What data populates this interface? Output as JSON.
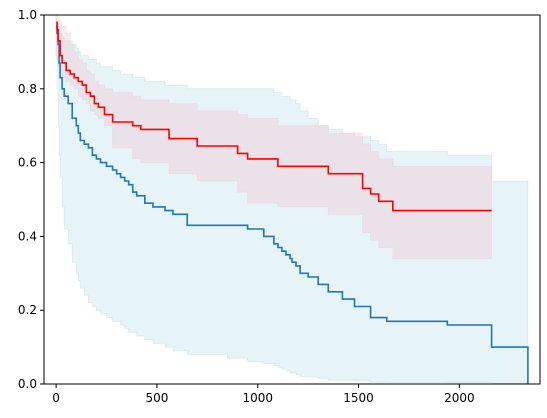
{
  "chart_data": {
    "type": "line",
    "title": "",
    "xlabel": "",
    "ylabel": "",
    "xlim": [
      -60,
      2400
    ],
    "ylim": [
      0,
      1
    ],
    "grid": false,
    "legend": "none",
    "x_ticks": [
      0,
      500,
      1000,
      1500,
      2000
    ],
    "x_tick_labels": [
      "0",
      "500",
      "1000",
      "1500",
      "2000"
    ],
    "y_ticks": [
      0.0,
      0.2,
      0.4,
      0.6,
      0.8,
      1.0
    ],
    "y_tick_labels": [
      "0.0",
      "0.2",
      "0.4",
      "0.6",
      "0.8",
      "1.0"
    ],
    "series": [
      {
        "color": "#1f77b4",
        "band_color": "#add8e6",
        "x": [
          0,
          5,
          10,
          15,
          20,
          30,
          40,
          60,
          80,
          100,
          110,
          120,
          140,
          160,
          180,
          200,
          220,
          250,
          280,
          300,
          320,
          340,
          360,
          380,
          400,
          440,
          480,
          540,
          580,
          650,
          850,
          950,
          1030,
          1080,
          1100,
          1120,
          1140,
          1160,
          1170,
          1190,
          1210,
          1250,
          1300,
          1350,
          1420,
          1480,
          1560,
          1600,
          1640,
          1940,
          2160,
          2340
        ],
        "y": [
          0.97,
          0.95,
          0.92,
          0.87,
          0.83,
          0.8,
          0.78,
          0.76,
          0.72,
          0.7,
          0.68,
          0.66,
          0.65,
          0.64,
          0.62,
          0.61,
          0.6,
          0.59,
          0.58,
          0.57,
          0.56,
          0.55,
          0.54,
          0.52,
          0.51,
          0.49,
          0.48,
          0.47,
          0.46,
          0.43,
          0.43,
          0.42,
          0.4,
          0.38,
          0.37,
          0.36,
          0.35,
          0.34,
          0.33,
          0.32,
          0.3,
          0.29,
          0.27,
          0.25,
          0.23,
          0.21,
          0.18,
          0.18,
          0.17,
          0.16,
          0.1,
          0.0
        ],
        "lower": [
          0.88,
          0.8,
          0.7,
          0.62,
          0.56,
          0.48,
          0.42,
          0.38,
          0.33,
          0.3,
          0.28,
          0.26,
          0.24,
          0.22,
          0.21,
          0.2,
          0.19,
          0.18,
          0.17,
          0.17,
          0.16,
          0.15,
          0.14,
          0.14,
          0.13,
          0.12,
          0.11,
          0.1,
          0.09,
          0.08,
          0.07,
          0.06,
          0.055,
          0.05,
          0.045,
          0.04,
          0.035,
          0.03,
          0.03,
          0.025,
          0.02,
          0.02,
          0.015,
          0.01,
          0.01,
          0.008,
          0.005,
          0.005,
          0.004,
          0.003,
          0.002,
          0.0
        ],
        "upper": [
          0.99,
          0.98,
          0.97,
          0.96,
          0.95,
          0.94,
          0.93,
          0.93,
          0.92,
          0.91,
          0.9,
          0.89,
          0.89,
          0.88,
          0.88,
          0.87,
          0.86,
          0.86,
          0.85,
          0.85,
          0.84,
          0.84,
          0.84,
          0.83,
          0.83,
          0.82,
          0.82,
          0.81,
          0.81,
          0.8,
          0.8,
          0.8,
          0.8,
          0.79,
          0.79,
          0.78,
          0.78,
          0.77,
          0.77,
          0.76,
          0.74,
          0.72,
          0.7,
          0.69,
          0.68,
          0.67,
          0.66,
          0.65,
          0.63,
          0.62,
          0.55,
          0.55
        ]
      },
      {
        "color": "#ff0000",
        "band_color": "#f4c2cf",
        "x": [
          0,
          5,
          10,
          20,
          30,
          50,
          70,
          90,
          110,
          130,
          150,
          170,
          190,
          210,
          240,
          280,
          380,
          420,
          560,
          700,
          900,
          950,
          1100,
          1350,
          1520,
          1560,
          1600,
          1670,
          2160
        ],
        "y": [
          0.98,
          0.96,
          0.93,
          0.89,
          0.87,
          0.85,
          0.84,
          0.83,
          0.82,
          0.81,
          0.79,
          0.78,
          0.76,
          0.75,
          0.73,
          0.71,
          0.7,
          0.69,
          0.665,
          0.645,
          0.625,
          0.61,
          0.59,
          0.57,
          0.53,
          0.515,
          0.495,
          0.47,
          0.47
        ],
        "lower": [
          0.9,
          0.88,
          0.86,
          0.84,
          0.83,
          0.82,
          0.81,
          0.8,
          0.78,
          0.77,
          0.76,
          0.74,
          0.73,
          0.72,
          0.7,
          0.64,
          0.61,
          0.6,
          0.57,
          0.55,
          0.52,
          0.49,
          0.48,
          0.46,
          0.41,
          0.39,
          0.37,
          0.34,
          0.34
        ],
        "upper": [
          1.0,
          1.0,
          0.99,
          0.98,
          0.97,
          0.95,
          0.92,
          0.9,
          0.88,
          0.87,
          0.85,
          0.84,
          0.82,
          0.81,
          0.8,
          0.79,
          0.78,
          0.77,
          0.76,
          0.74,
          0.73,
          0.72,
          0.7,
          0.68,
          0.65,
          0.63,
          0.61,
          0.59,
          0.59
        ]
      }
    ]
  }
}
